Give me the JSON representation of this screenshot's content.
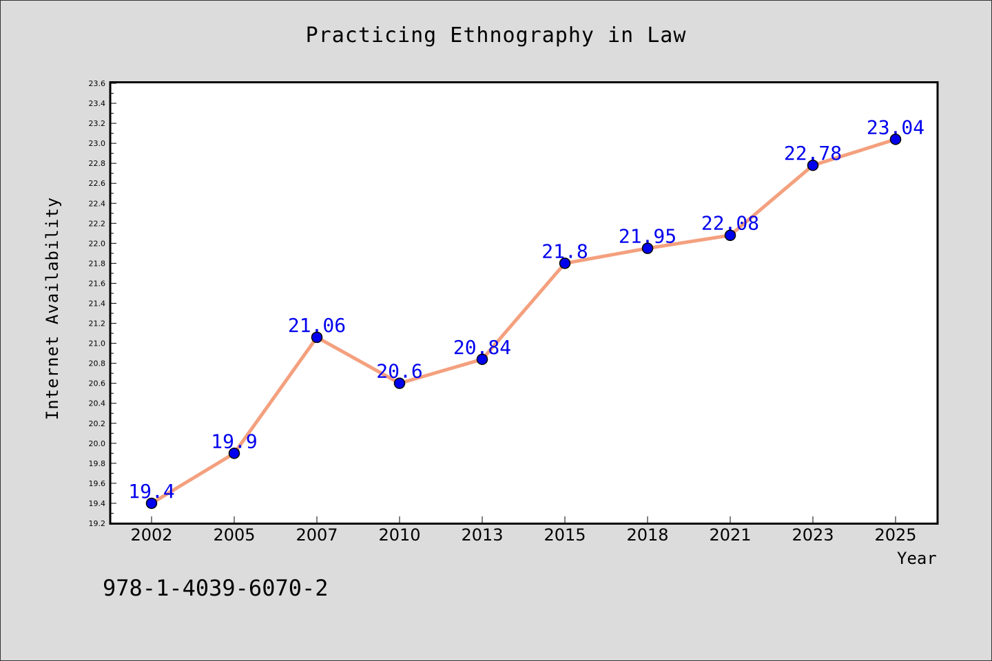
{
  "chart_data": {
    "type": "line",
    "title": "Practicing Ethnography in Law",
    "xlabel": "Year",
    "ylabel": "Internet Availability",
    "categories": [
      "2002",
      "2005",
      "2007",
      "2010",
      "2013",
      "2015",
      "2018",
      "2021",
      "2023",
      "2025"
    ],
    "series": [
      {
        "values": [
          19.4,
          19.9,
          21.06,
          20.6,
          20.84,
          21.8,
          21.95,
          22.08,
          22.78,
          23.04
        ],
        "labels": [
          "19.4",
          "19.9",
          "21.06",
          "20.6",
          "20.84",
          "21.8",
          "21.95",
          "22.08",
          "22.78",
          "23.04"
        ],
        "line_color": "#f4a07e",
        "marker_color": "#0000ee",
        "label_color": "#0000ee"
      }
    ],
    "ylim": [
      19.2,
      23.6
    ],
    "yticks": [
      "19.2",
      "19.4",
      "19.6",
      "19.8",
      "20.0",
      "20.2",
      "20.4",
      "20.6",
      "20.8",
      "21.0",
      "21.2",
      "21.4",
      "21.6",
      "21.8",
      "22.0",
      "22.2",
      "22.4",
      "22.6",
      "22.8",
      "23.0",
      "23.2",
      "23.4",
      "23.6"
    ],
    "grid": false,
    "legend": "none"
  },
  "footer": {
    "isbn": "978-1-4039-6070-2"
  }
}
